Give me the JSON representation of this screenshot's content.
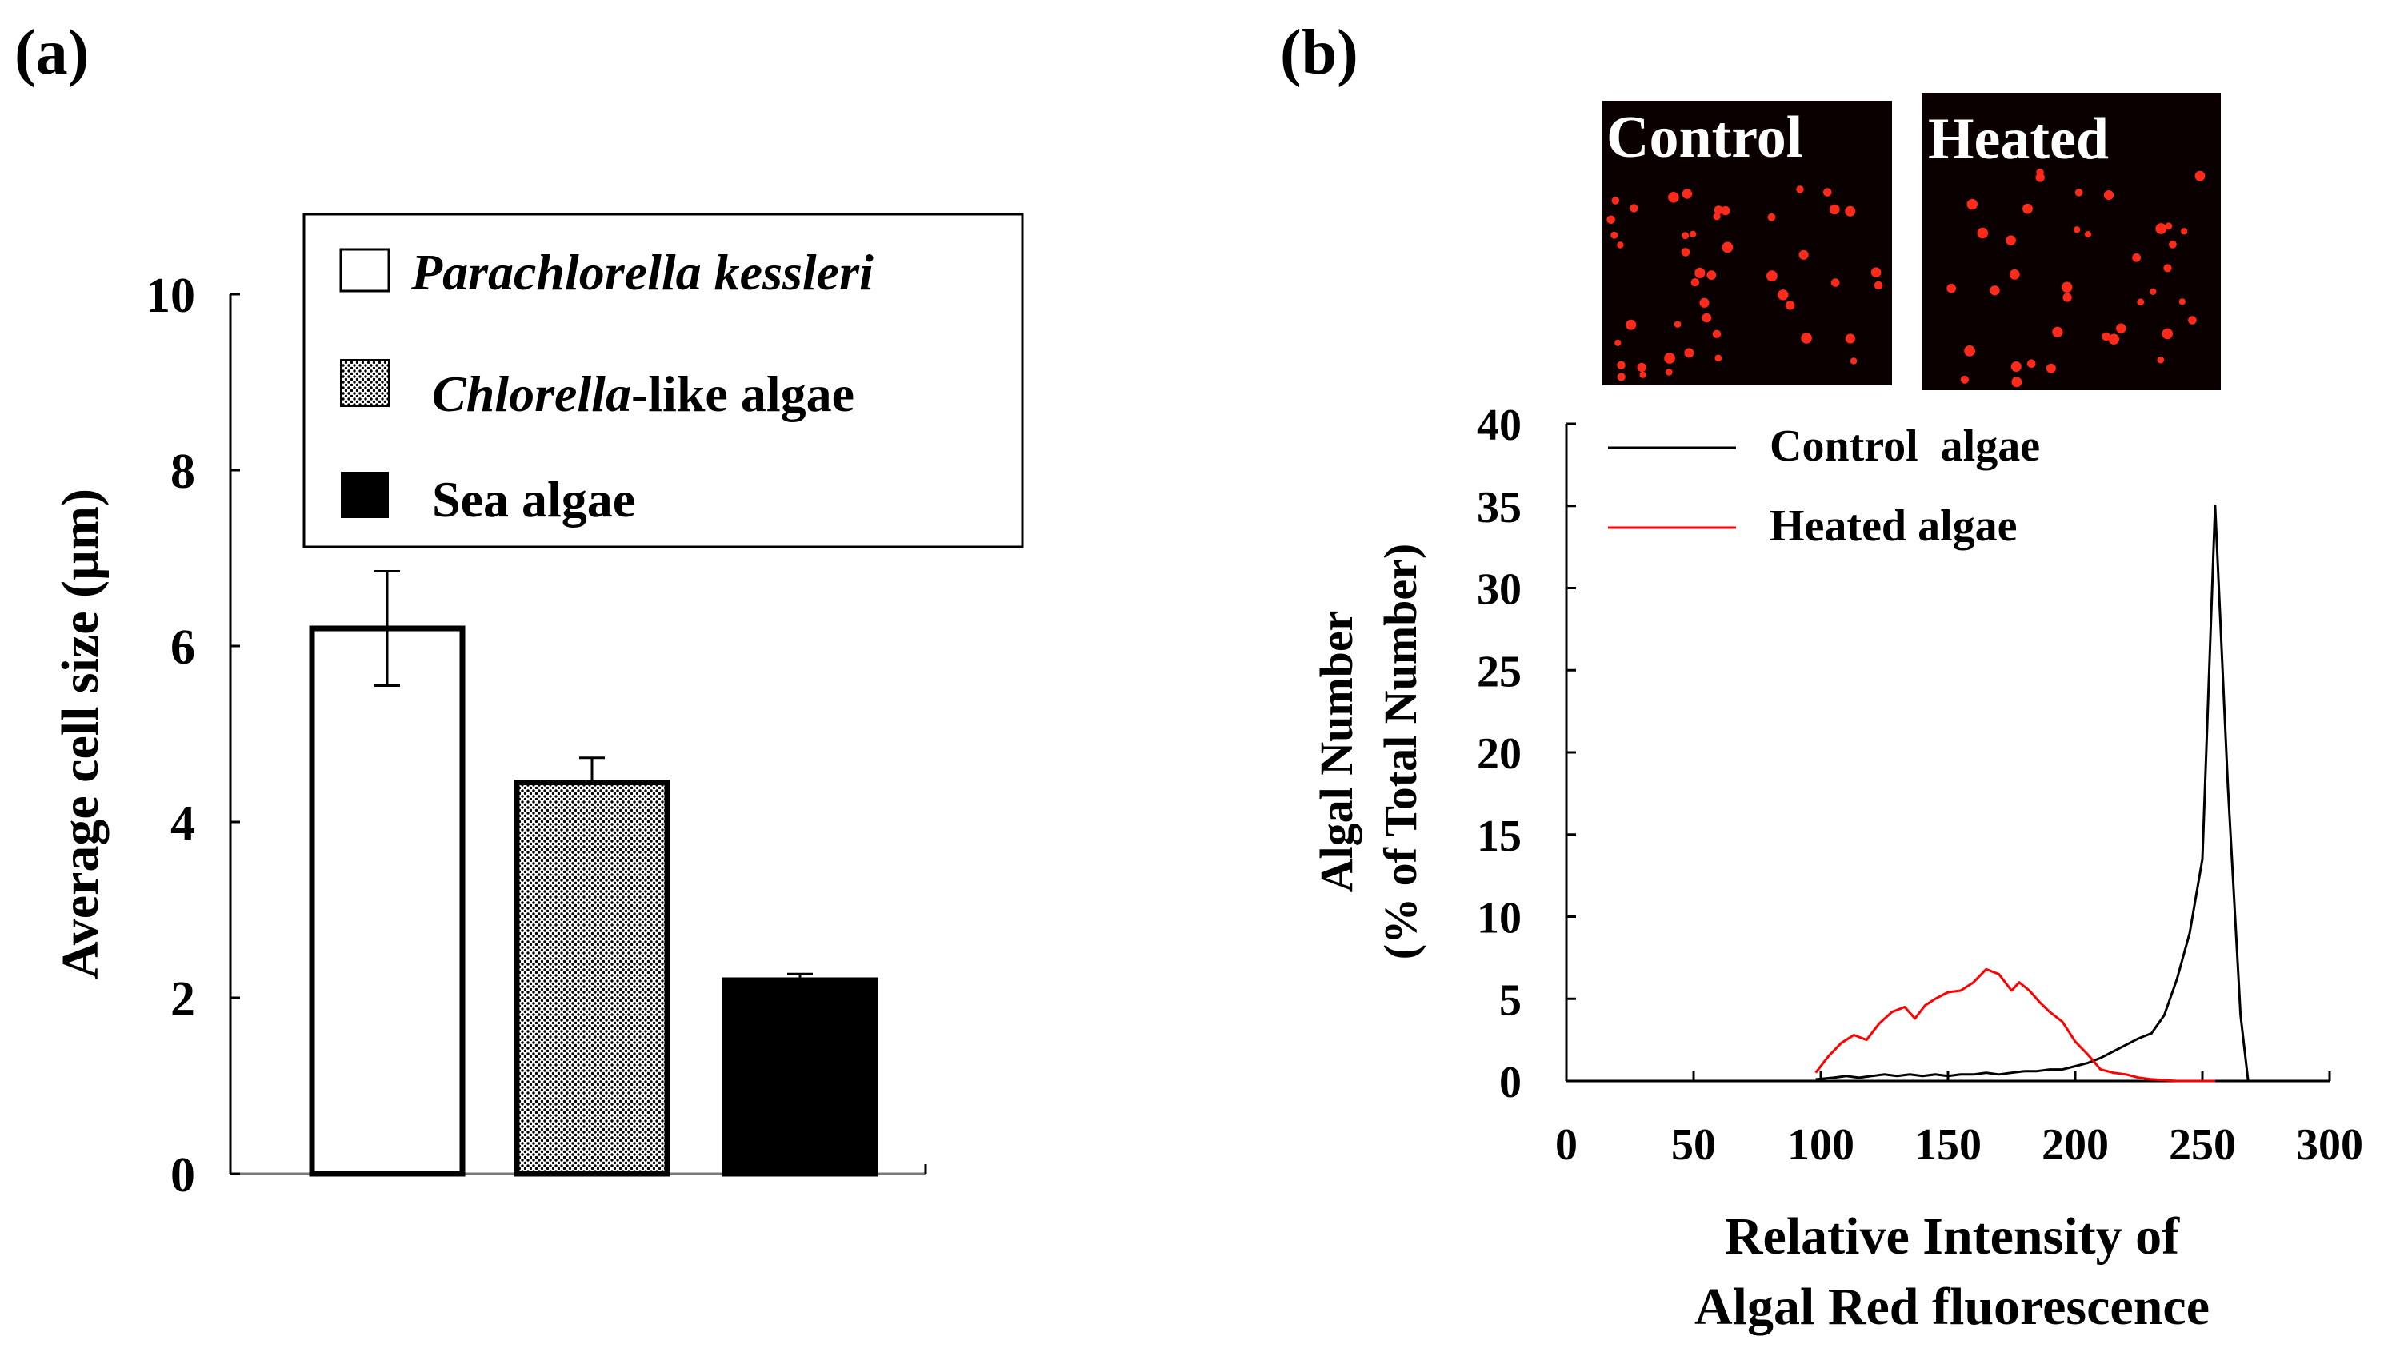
{
  "panels": {
    "a": {
      "label": "(a)"
    },
    "b": {
      "label": "(b)"
    }
  },
  "colors": {
    "control_line": "#000000",
    "heated_line": "#ff0000",
    "micrograph_bg": "#0a0000",
    "cell_dot": "#ff2a1a"
  },
  "micrographs": [
    {
      "label": "Control"
    },
    {
      "label": "Heated"
    }
  ],
  "chart_data": [
    {
      "id": "a",
      "type": "bar",
      "title": "",
      "xlabel": "",
      "ylabel": "Average cell size (µm)",
      "ylim": [
        0,
        10
      ],
      "yticks": [
        0,
        2,
        4,
        6,
        8,
        10
      ],
      "grid": false,
      "legend_placement": "top-right",
      "categories": [
        {
          "name": "Parachlorella kessleri",
          "label_italic": "Parachlorella kessleri",
          "label_rest": "",
          "fill": "white",
          "value": 6.2,
          "error": 0.65
        },
        {
          "name": "Chlorella-like algae",
          "label_italic": "Chlorella",
          "label_rest": "-like algae",
          "fill": "dotted",
          "value": 4.45,
          "error": 0.28
        },
        {
          "name": "Sea algae",
          "label_italic": "",
          "label_rest": "Sea algae",
          "fill": "black",
          "value": 2.2,
          "error": 0.07
        }
      ]
    },
    {
      "id": "b",
      "type": "line",
      "title": "",
      "xlabel_lines": [
        "Relative Intensity of",
        "Algal Red fluorescence"
      ],
      "ylabel_lines": [
        "Algal Number",
        "(% of Total Number)"
      ],
      "xlim": [
        0,
        300
      ],
      "ylim": [
        0,
        40
      ],
      "xticks": [
        0,
        50,
        100,
        150,
        200,
        250,
        300
      ],
      "yticks": [
        0,
        5,
        10,
        15,
        20,
        25,
        30,
        35,
        40
      ],
      "grid": false,
      "legend_placement": "top-left",
      "series": [
        {
          "name": "Control  algae",
          "color": "#000000",
          "x": [
            98,
            105,
            110,
            115,
            120,
            125,
            130,
            135,
            140,
            145,
            150,
            155,
            160,
            165,
            170,
            175,
            180,
            185,
            190,
            195,
            200,
            205,
            210,
            215,
            220,
            225,
            230,
            235,
            240,
            245,
            250,
            255,
            260,
            265,
            268
          ],
          "y": [
            0.1,
            0.2,
            0.3,
            0.2,
            0.3,
            0.4,
            0.3,
            0.4,
            0.3,
            0.4,
            0.3,
            0.4,
            0.4,
            0.5,
            0.4,
            0.5,
            0.6,
            0.6,
            0.7,
            0.7,
            0.9,
            1.1,
            1.4,
            1.8,
            2.2,
            2.6,
            2.9,
            4.0,
            6.2,
            9.0,
            13.5,
            35.0,
            18.0,
            4.0,
            0.0
          ]
        },
        {
          "name": "Heated algae",
          "color": "#ff0000",
          "x": [
            98,
            103,
            108,
            113,
            118,
            123,
            128,
            133,
            137,
            141,
            145,
            150,
            155,
            160,
            165,
            170,
            175,
            178,
            182,
            186,
            190,
            195,
            200,
            205,
            210,
            215,
            220,
            225,
            230,
            240,
            255
          ],
          "y": [
            0.5,
            1.5,
            2.3,
            2.8,
            2.5,
            3.5,
            4.2,
            4.5,
            3.8,
            4.6,
            5.0,
            5.4,
            5.5,
            6.0,
            6.8,
            6.5,
            5.5,
            6.0,
            5.5,
            4.8,
            4.2,
            3.6,
            2.4,
            1.6,
            0.7,
            0.5,
            0.4,
            0.2,
            0.1,
            0.0,
            0.0
          ]
        }
      ]
    }
  ]
}
